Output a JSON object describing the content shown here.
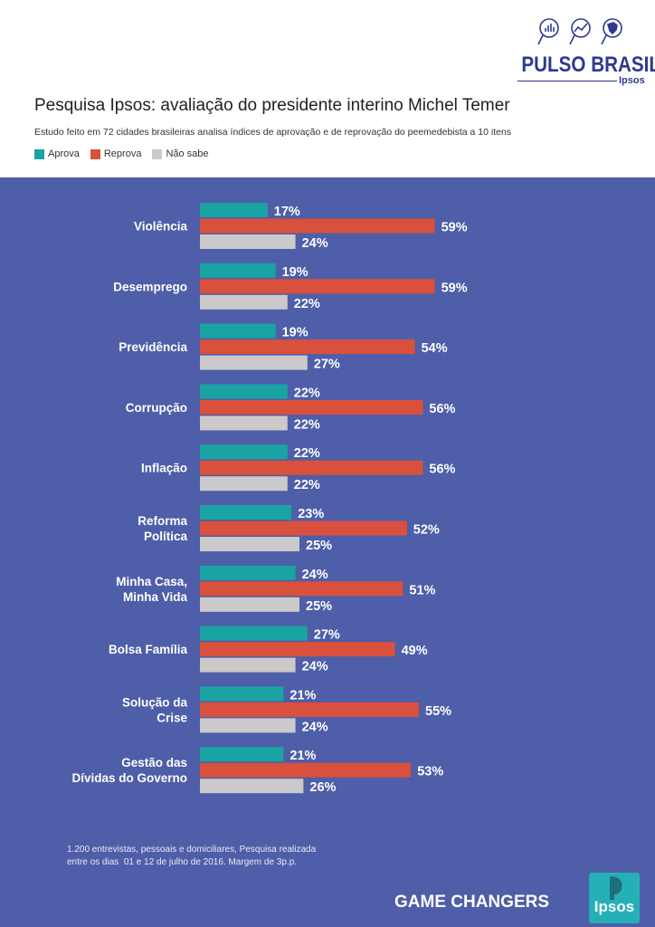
{
  "brand": {
    "name": "PULSO BRASIL",
    "sub": "Ipsos",
    "icons": [
      "magnifier-bars-icon",
      "magnifier-trend-icon",
      "magnifier-brazil-map-icon"
    ]
  },
  "colors": {
    "aprova": "#1aa3a3",
    "reprova": "#d9503c",
    "naosabe": "#cbc9c9",
    "panel": "#4e5ea8"
  },
  "chart_data": {
    "type": "bar",
    "orientation": "horizontal",
    "title": "Pesquisa Ipsos: avaliação do presidente interino Michel Temer",
    "subtitle": "Estudo feito em 72 cidades brasileiras analisa índices de aprovação e de reprovação do peemedebista a 10 itens",
    "legend_position": "top-left",
    "grid": false,
    "xlim": [
      0,
      60
    ],
    "categories": [
      [
        "Violência"
      ],
      [
        "Desemprego"
      ],
      [
        "Previdência"
      ],
      [
        "Corrupção"
      ],
      [
        "Inflação"
      ],
      [
        "Reforma",
        "Política"
      ],
      [
        "Minha Casa,",
        "Minha Vida"
      ],
      [
        "Bolsa Família"
      ],
      [
        "Solução da",
        "Crise"
      ],
      [
        "Gestão das",
        "Dívidas do Governo"
      ]
    ],
    "series": [
      {
        "name": "Aprova",
        "values": [
          17,
          19,
          19,
          22,
          22,
          23,
          24,
          27,
          21,
          21
        ]
      },
      {
        "name": "Reprova",
        "values": [
          59,
          59,
          54,
          56,
          56,
          52,
          51,
          49,
          55,
          53
        ]
      },
      {
        "name": "Não sabe",
        "values": [
          24,
          22,
          27,
          22,
          22,
          25,
          25,
          24,
          24,
          26
        ]
      }
    ],
    "value_suffix": "%"
  },
  "footnote": {
    "line1": "1.200 entrevistas, pessoais e domiciliares, Pesquisa realizada",
    "line2": "entre os dias  01 e 12 de julho de 2016. Margem de 3p.p."
  },
  "footer": {
    "slogan": "GAME CHANGERS",
    "logo_text": "Ipsos"
  }
}
